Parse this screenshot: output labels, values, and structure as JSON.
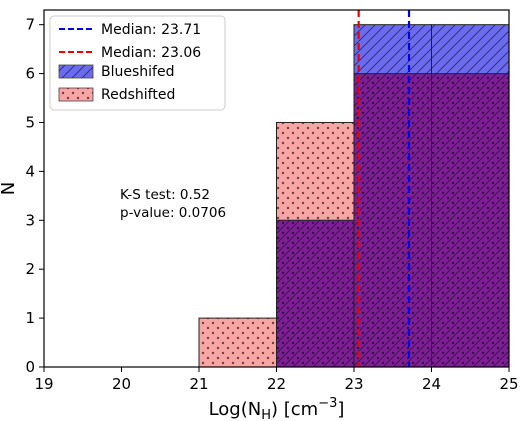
{
  "chart_data": {
    "type": "histogram",
    "xlabel": "Log(N_H) [cm^-3]",
    "xlabel_parts": {
      "prefix": "Log(N",
      "sub": "H",
      "mid": ") [cm",
      "sup": "−3",
      "suffix": "]"
    },
    "ylabel": "N",
    "xlim": [
      19,
      25
    ],
    "ylim": [
      0,
      7.3
    ],
    "xticks": [
      19,
      20,
      21,
      22,
      23,
      24,
      25
    ],
    "yticks": [
      0,
      1,
      2,
      3,
      4,
      5,
      6,
      7
    ],
    "bins": [
      [
        21,
        22
      ],
      [
        22,
        23
      ],
      [
        23,
        24
      ],
      [
        24,
        25
      ]
    ],
    "series": [
      {
        "name": "Blueshifed",
        "values": [
          0,
          3,
          7,
          7
        ],
        "color": "#6b6bf0",
        "hatch": "diagonal"
      },
      {
        "name": "Redshifted",
        "values": [
          1,
          5,
          6,
          6
        ],
        "color": "#f7a5a5",
        "hatch": "dots"
      }
    ],
    "overlap_color": "#7e1f96",
    "medians": [
      {
        "label": "Median: 23.71",
        "value": 23.71,
        "color": "#0000ee",
        "style": "dashed"
      },
      {
        "label": "Median: 23.06",
        "value": 23.06,
        "color": "#ee0000",
        "style": "dashed"
      }
    ],
    "annotation": [
      "K-S test: 0.52",
      "p-value: 0.0706"
    ],
    "legend_position": "top-left"
  }
}
